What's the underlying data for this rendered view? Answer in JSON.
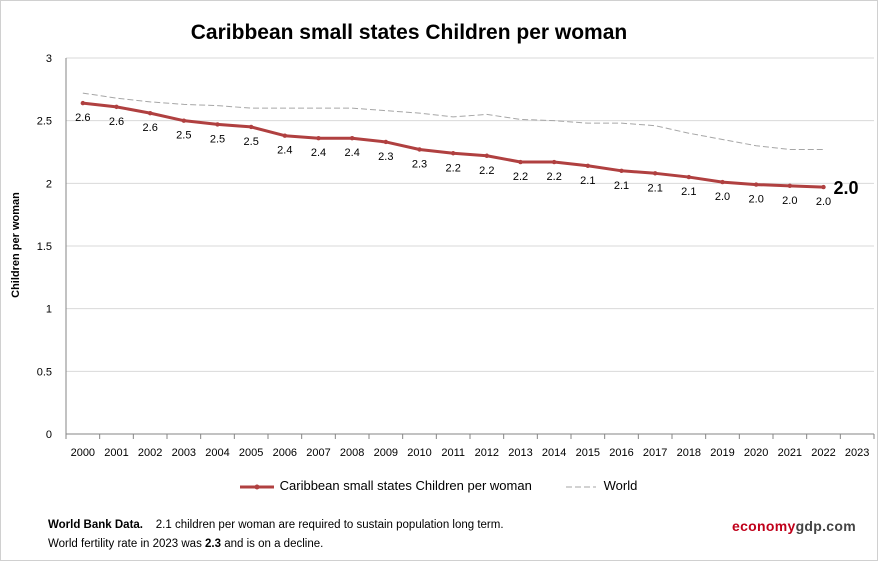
{
  "chart_data": {
    "type": "line",
    "title": "Caribbean small states Children per woman",
    "ylabel": "Children per woman",
    "xlabel": "",
    "ylim": [
      0,
      3
    ],
    "yticks": [
      "0",
      "0.5",
      "1",
      "1.5",
      "2",
      "2.5",
      "3"
    ],
    "categories": [
      "2000",
      "2001",
      "2002",
      "2003",
      "2004",
      "2005",
      "2006",
      "2007",
      "2008",
      "2009",
      "2010",
      "2011",
      "2012",
      "2013",
      "2014",
      "2015",
      "2016",
      "2017",
      "2018",
      "2019",
      "2020",
      "2021",
      "2022",
      "2023"
    ],
    "grid": true,
    "legend_position": "bottom",
    "series": [
      {
        "name": "Caribbean small states Children per woman",
        "color": "#b04040",
        "values": [
          2.64,
          2.61,
          2.56,
          2.5,
          2.47,
          2.45,
          2.38,
          2.36,
          2.36,
          2.33,
          2.27,
          2.24,
          2.22,
          2.17,
          2.17,
          2.14,
          2.1,
          2.08,
          2.05,
          2.01,
          1.99,
          1.98,
          1.97,
          null
        ],
        "labels": [
          "2.6",
          "2.6",
          "2.6",
          "2.5",
          "2.5",
          "2.5",
          "2.4",
          "2.4",
          "2.4",
          "2.3",
          "2.3",
          "2.2",
          "2.2",
          "2.2",
          "2.2",
          "2.1",
          "2.1",
          "2.1",
          "2.1",
          "2.0",
          "2.0",
          "2.0",
          "2.0",
          ""
        ]
      },
      {
        "name": "World",
        "color": "#a6a6a6",
        "values": [
          2.72,
          2.68,
          2.65,
          2.63,
          2.62,
          2.6,
          2.6,
          2.6,
          2.6,
          2.58,
          2.56,
          2.53,
          2.55,
          2.51,
          2.5,
          2.48,
          2.48,
          2.46,
          2.4,
          2.35,
          2.3,
          2.27,
          2.27,
          null
        ]
      }
    ],
    "annotation_last_value": "2.0"
  },
  "footer": {
    "source_label": "World Bank Data.",
    "note_line1": "2.1 children per woman  are required to sustain population long term.",
    "note_line2_prefix": "World fertility rate in 2023 was ",
    "note_line2_value": "2.3",
    "note_line2_suffix": " and is on a decline."
  },
  "brand": {
    "part1": "economy",
    "part2": "gdp.com",
    "color1": "#c0001a",
    "color2": "#444444"
  }
}
